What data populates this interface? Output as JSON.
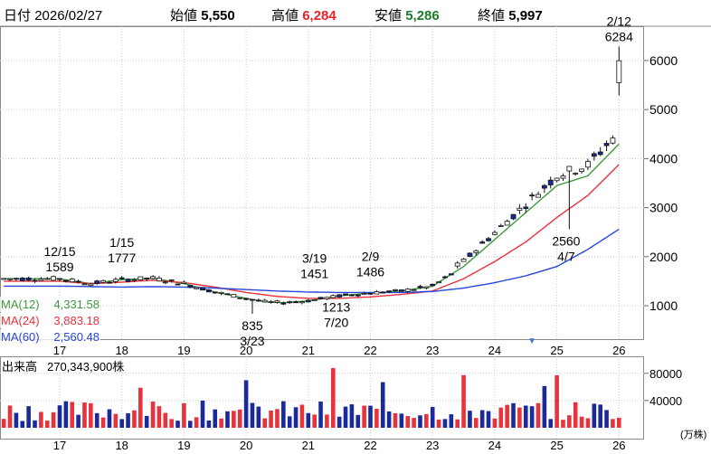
{
  "header": {
    "date_label": "日付",
    "date_value": "2026/02/27",
    "open_label": "始値",
    "open_value": "5,550",
    "high_label": "高値",
    "high_value": "6,284",
    "low_label": "安値",
    "low_value": "5,286",
    "close_label": "終値",
    "close_value": "5,997"
  },
  "colors": {
    "high": "#e8212a",
    "low": "#1f7a2a",
    "candle_up": "#ffffff",
    "candle_down": "#1a2a9a",
    "ma12": "#3c9a3c",
    "ma24": "#e8323c",
    "ma60": "#2846d8",
    "vol_up": "#e8323c",
    "vol_down": "#1a2a9a",
    "grid": "#cccccc"
  },
  "chart_data": [
    {
      "type": "candlestick",
      "x_tick_labels": [
        "17",
        "18",
        "19",
        "20",
        "21",
        "22",
        "23",
        "24",
        "25",
        "26"
      ],
      "y_ticks": [
        1000,
        2000,
        3000,
        4000,
        5000,
        6000
      ],
      "ylim": [
        300,
        6700
      ],
      "grid": true,
      "series_ma": [
        {
          "name": "MA(12)",
          "label": "MA(12)",
          "value_text": "4,331.58",
          "points": [
            [
              0,
              1550
            ],
            [
              0.5,
              1450
            ],
            [
              1,
              1530
            ],
            [
              1.5,
              1560
            ],
            [
              2,
              1450
            ],
            [
              2.5,
              1280
            ],
            [
              3,
              1150
            ],
            [
              3.3,
              1080
            ],
            [
              3.6,
              1060
            ],
            [
              4,
              1100
            ],
            [
              4.5,
              1200
            ],
            [
              5,
              1260
            ],
            [
              5.5,
              1300
            ],
            [
              6,
              1400
            ],
            [
              6.5,
              1800
            ],
            [
              7,
              2350
            ],
            [
              7.5,
              2900
            ],
            [
              8,
              3450
            ],
            [
              8.5,
              3650
            ],
            [
              9,
              4300
            ]
          ]
        },
        {
          "name": "MA(24)",
          "label": "MA(24)",
          "value_text": "3,883.18",
          "points": [
            [
              0,
              1500
            ],
            [
              0.5,
              1450
            ],
            [
              1,
              1480
            ],
            [
              1.5,
              1520
            ],
            [
              2,
              1470
            ],
            [
              2.5,
              1380
            ],
            [
              3,
              1270
            ],
            [
              3.5,
              1190
            ],
            [
              4,
              1150
            ],
            [
              4.5,
              1150
            ],
            [
              5,
              1180
            ],
            [
              5.5,
              1230
            ],
            [
              6,
              1300
            ],
            [
              6.5,
              1550
            ],
            [
              7,
              1900
            ],
            [
              7.5,
              2300
            ],
            [
              8,
              2800
            ],
            [
              8.5,
              3250
            ],
            [
              9,
              3880
            ]
          ]
        },
        {
          "name": "MA(60)",
          "label": "MA(60)",
          "value_text": "2,560.48",
          "points": [
            [
              0,
              1400
            ],
            [
              1,
              1380
            ],
            [
              1.5,
              1390
            ],
            [
              2,
              1380
            ],
            [
              2.5,
              1360
            ],
            [
              3,
              1330
            ],
            [
              3.5,
              1300
            ],
            [
              4,
              1280
            ],
            [
              4.5,
              1270
            ],
            [
              5,
              1270
            ],
            [
              5.5,
              1270
            ],
            [
              6,
              1290
            ],
            [
              6.5,
              1360
            ],
            [
              7,
              1470
            ],
            [
              7.5,
              1610
            ],
            [
              8,
              1800
            ],
            [
              8.5,
              2150
            ],
            [
              9,
              2560
            ]
          ]
        }
      ],
      "annotations": [
        {
          "text": "12/15",
          "x": 0.0,
          "y": 1589,
          "pos": "above2"
        },
        {
          "text": "1589",
          "x": 0.0,
          "y": 1589,
          "pos": "above1"
        },
        {
          "text": "1/15",
          "x": 1.0,
          "y": 1777,
          "pos": "above2"
        },
        {
          "text": "1777",
          "x": 1.0,
          "y": 1777,
          "pos": "above1"
        },
        {
          "text": "835",
          "x": 3.1,
          "y": 835,
          "pos": "below1"
        },
        {
          "text": "3/23",
          "x": 3.1,
          "y": 835,
          "pos": "below2"
        },
        {
          "text": "3/19",
          "x": 4.1,
          "y": 1451,
          "pos": "above2"
        },
        {
          "text": "1451",
          "x": 4.1,
          "y": 1451,
          "pos": "above1"
        },
        {
          "text": "1213",
          "x": 4.45,
          "y": 1213,
          "pos": "below1"
        },
        {
          "text": "7/20",
          "x": 4.45,
          "y": 1213,
          "pos": "below2"
        },
        {
          "text": "2/9",
          "x": 5.0,
          "y": 1486,
          "pos": "above2"
        },
        {
          "text": "1486",
          "x": 5.0,
          "y": 1486,
          "pos": "above1"
        },
        {
          "text": "2560",
          "x": 8.15,
          "y": 2560,
          "pos": "below1"
        },
        {
          "text": "4/7",
          "x": 8.15,
          "y": 2560,
          "pos": "below2"
        },
        {
          "text": "2/12",
          "x": 9.0,
          "y": 6284,
          "pos": "above2"
        },
        {
          "text": "6284",
          "x": 9.0,
          "y": 6284,
          "pos": "above1"
        }
      ],
      "marker": {
        "x": 7.6,
        "symbol": "▼"
      }
    },
    {
      "type": "bar",
      "title": "出来高",
      "value_text": "270,343,900株",
      "unit": "(万株)",
      "y_ticks": [
        40000,
        80000
      ],
      "ylim": [
        0,
        105000
      ],
      "x_tick_labels": [
        "17",
        "18",
        "19",
        "20",
        "21",
        "22",
        "23",
        "24",
        "25",
        "26"
      ]
    }
  ]
}
